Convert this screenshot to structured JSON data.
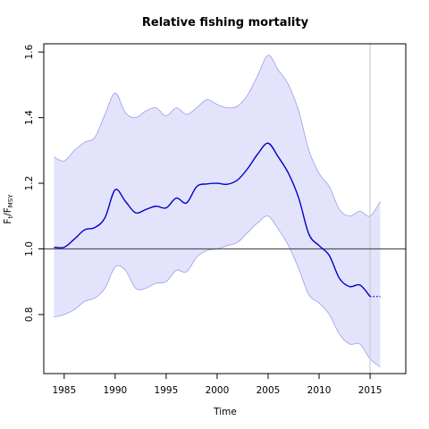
{
  "chart_data": {
    "type": "line",
    "title": "Relative fishing mortality",
    "xlabel": "Time",
    "ylabel": {
      "base": "F",
      "sub1": "t",
      "mid": "/F",
      "sub2": "MSY"
    },
    "xlim": [
      1983,
      2018.5
    ],
    "ylim": [
      0.62,
      1.625
    ],
    "xticks": [
      1985,
      1990,
      1995,
      2000,
      2005,
      2010,
      2015
    ],
    "yticks": [
      0.8,
      1.0,
      1.2,
      1.4,
      1.6
    ],
    "reference_line": 1.0,
    "vertical_line": 2015,
    "x": [
      1984,
      1985,
      1986,
      1987,
      1988,
      1989,
      1990,
      1991,
      1992,
      1993,
      1994,
      1995,
      1996,
      1997,
      1998,
      1999,
      2000,
      2001,
      2002,
      2003,
      2004,
      2005,
      2006,
      2007,
      2008,
      2009,
      2010,
      2011,
      2012,
      2013,
      2014,
      2015,
      2016
    ],
    "series": [
      {
        "values": [
          1.005,
          1.005,
          1.03,
          1.058,
          1.065,
          1.095,
          1.18,
          1.145,
          1.11,
          1.12,
          1.13,
          1.125,
          1.155,
          1.14,
          1.19,
          1.198,
          1.2,
          1.197,
          1.21,
          1.245,
          1.29,
          1.322,
          1.28,
          1.23,
          1.155,
          1.045,
          1.01,
          0.98,
          0.91,
          0.885,
          0.89,
          0.855,
          0.855
        ],
        "lower": [
          0.792,
          0.8,
          0.815,
          0.84,
          0.85,
          0.88,
          0.945,
          0.935,
          0.88,
          0.88,
          0.895,
          0.9,
          0.935,
          0.93,
          0.975,
          0.995,
          1.0,
          1.01,
          1.02,
          1.05,
          1.08,
          1.1,
          1.06,
          1.01,
          0.94,
          0.86,
          0.835,
          0.8,
          0.74,
          0.71,
          0.71,
          0.665,
          0.64
        ],
        "upper": [
          1.28,
          1.268,
          1.3,
          1.325,
          1.34,
          1.41,
          1.475,
          1.415,
          1.4,
          1.42,
          1.43,
          1.405,
          1.43,
          1.41,
          1.43,
          1.455,
          1.44,
          1.43,
          1.435,
          1.47,
          1.53,
          1.59,
          1.545,
          1.5,
          1.42,
          1.3,
          1.23,
          1.19,
          1.12,
          1.1,
          1.115,
          1.1,
          1.145
        ],
        "projection_from": 2015
      }
    ],
    "colors": {
      "line": "#0000cc",
      "band_fill": "#e3e3fc",
      "band_edge": "#9d9de6",
      "ref_line": "#555555",
      "vline": "#cccccc"
    }
  }
}
